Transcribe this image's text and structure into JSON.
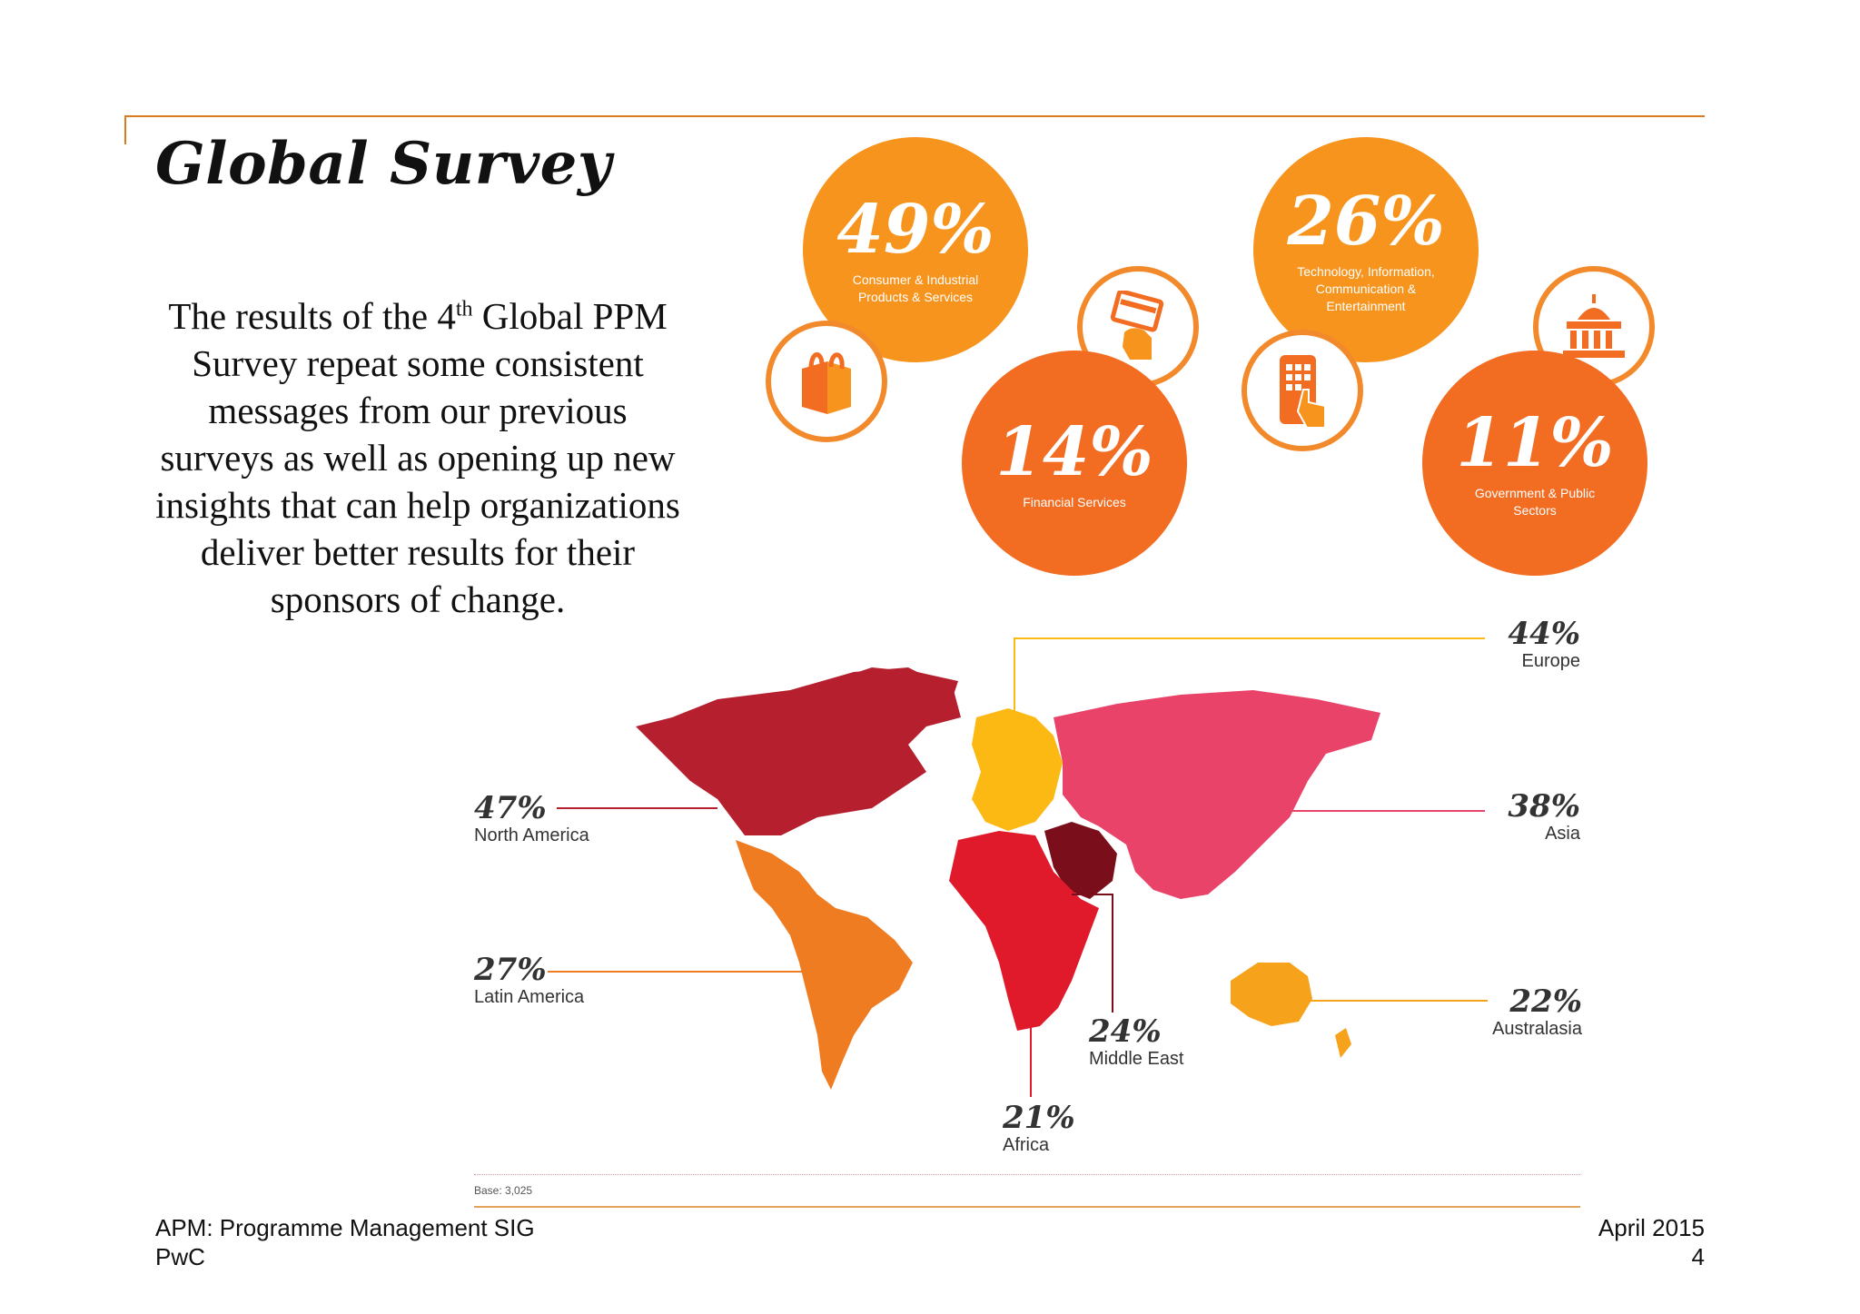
{
  "title": "Global Survey",
  "body": {
    "line1a": "The results of the 4",
    "line1sup": "th",
    "line1b": " Global PPM",
    "line2": "Survey repeat some consistent",
    "line3": "messages from our previous",
    "line4": "surveys as well as opening up new",
    "line5": "insights that can help organizations",
    "line6": "deliver better results for their",
    "line7": "sponsors of change."
  },
  "sectors": [
    {
      "pct": "49%",
      "label": "Consumer & Industrial Products & Services",
      "color": "#f7941d"
    },
    {
      "pct": "14%",
      "label": "Financial Services",
      "color": "#f26c22"
    },
    {
      "pct": "26%",
      "label": "Technology, Information, Communication & Entertainment",
      "color": "#f7941d"
    },
    {
      "pct": "11%",
      "label": "Government & Public Sectors",
      "color": "#f26c22"
    }
  ],
  "icons": [
    "shopping-bag-icon",
    "credit-card-icon",
    "mobile-phone-icon",
    "government-building-icon"
  ],
  "regions": [
    {
      "pct": "44%",
      "name": "Europe",
      "color": "#fdb913"
    },
    {
      "pct": "47%",
      "name": "North America",
      "color": "#b51f2e"
    },
    {
      "pct": "38%",
      "name": "Asia",
      "color": "#e9436a"
    },
    {
      "pct": "27%",
      "name": "Latin America",
      "color": "#f07c22"
    },
    {
      "pct": "22%",
      "name": "Australasia",
      "color": "#f6a21b"
    },
    {
      "pct": "24%",
      "name": "Middle East",
      "color": "#7a0e1a"
    },
    {
      "pct": "21%",
      "name": "Africa",
      "color": "#e0192b"
    }
  ],
  "base": "Base: 3,025",
  "footer": {
    "org": "APM: Programme Management SIG",
    "company": "PwC",
    "date": "April 2015",
    "page": "4"
  }
}
